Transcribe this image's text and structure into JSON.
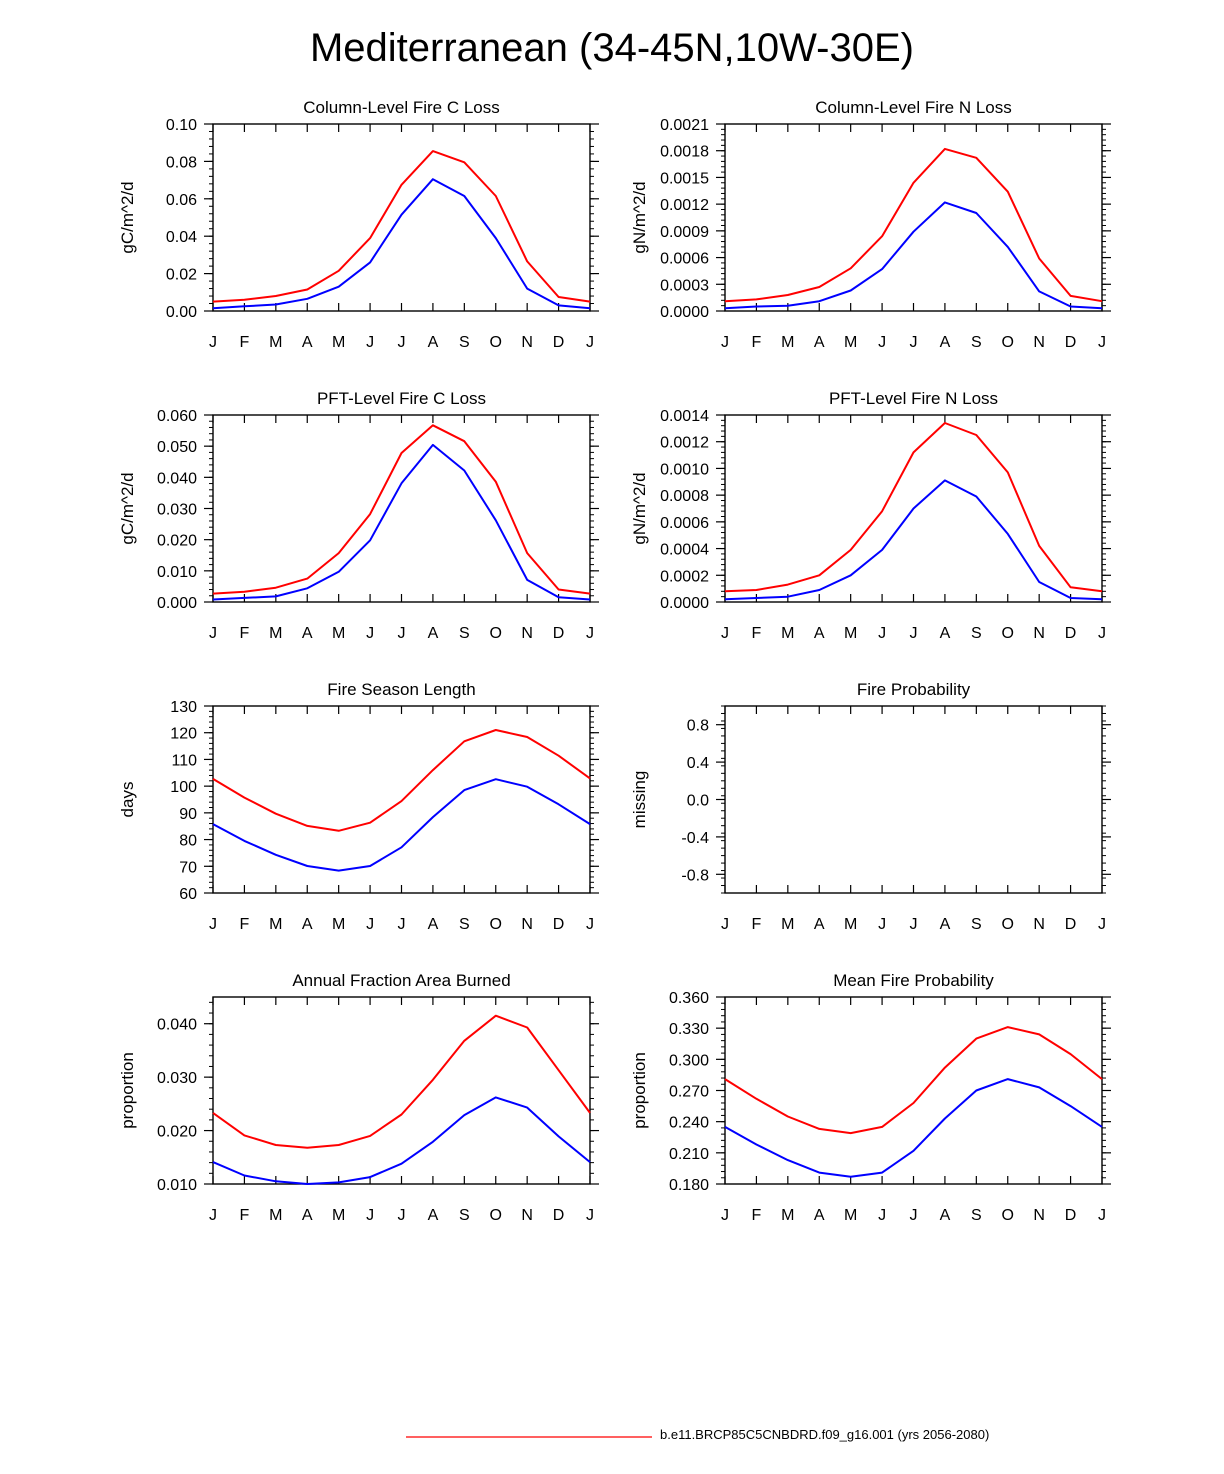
{
  "figure_title": "Mediterranean (34-45N,10W-30E)",
  "legend": [
    {
      "label": "b.e11.BRCP85C5CNBDRD.f09_g16.001 (yrs 2056-2080)",
      "color": "#ff0000"
    }
  ],
  "colors": {
    "red": "#ff0000",
    "blue": "#0000ff"
  },
  "chart_data": [
    {
      "type": "line",
      "title": "Column-Level Fire C Loss",
      "ylabel": "gC/m^2/d",
      "xlabel": "",
      "x": [
        "J",
        "F",
        "M",
        "A",
        "M",
        "J",
        "J",
        "A",
        "S",
        "O",
        "N",
        "D",
        "J"
      ],
      "ylim": [
        0,
        0.1
      ],
      "yticks": [
        0,
        0.02,
        0.04,
        0.06,
        0.08,
        0.1
      ],
      "ytick_labels": [
        "0.00",
        "0.02",
        "0.04",
        "0.06",
        "0.08",
        "0.10"
      ],
      "series": [
        {
          "name": "red",
          "color": "#ff0000",
          "values": [
            0.005,
            0.006,
            0.008,
            0.0115,
            0.0215,
            0.039,
            0.0675,
            0.0855,
            0.0795,
            0.0615,
            0.0265,
            0.0075,
            0.005
          ]
        },
        {
          "name": "blue",
          "color": "#0000ff",
          "values": [
            0.0015,
            0.0025,
            0.0035,
            0.0065,
            0.013,
            0.026,
            0.0515,
            0.0705,
            0.0615,
            0.039,
            0.012,
            0.003,
            0.0015
          ]
        }
      ]
    },
    {
      "type": "line",
      "title": "Column-Level Fire N Loss",
      "ylabel": "gN/m^2/d",
      "xlabel": "",
      "x": [
        "J",
        "F",
        "M",
        "A",
        "M",
        "J",
        "J",
        "A",
        "S",
        "O",
        "N",
        "D",
        "J"
      ],
      "ylim": [
        0,
        0.0021
      ],
      "yticks": [
        0,
        0.0003,
        0.0006,
        0.0009,
        0.0012,
        0.0015,
        0.0018,
        0.0021
      ],
      "ytick_labels": [
        "0.0000",
        "0.0003",
        "0.0006",
        "0.0009",
        "0.0012",
        "0.0015",
        "0.0018",
        "0.0021"
      ],
      "series": [
        {
          "name": "red",
          "color": "#ff0000",
          "values": [
            0.00011,
            0.00013,
            0.00018,
            0.00027,
            0.00048,
            0.00084,
            0.00144,
            0.00182,
            0.00172,
            0.00134,
            0.00059,
            0.00017,
            0.00011
          ]
        },
        {
          "name": "blue",
          "color": "#0000ff",
          "values": [
            3e-05,
            5e-05,
            6e-05,
            0.00011,
            0.00023,
            0.00047,
            0.00089,
            0.00122,
            0.0011,
            0.00072,
            0.00022,
            5e-05,
            3e-05
          ]
        }
      ]
    },
    {
      "type": "line",
      "title": "PFT-Level Fire C Loss",
      "ylabel": "gC/m^2/d",
      "xlabel": "",
      "x": [
        "J",
        "F",
        "M",
        "A",
        "M",
        "J",
        "J",
        "A",
        "S",
        "O",
        "N",
        "D",
        "J"
      ],
      "ylim": [
        0,
        0.06
      ],
      "yticks": [
        0,
        0.01,
        0.02,
        0.03,
        0.04,
        0.05,
        0.06
      ],
      "ytick_labels": [
        "0.000",
        "0.010",
        "0.020",
        "0.030",
        "0.040",
        "0.050",
        "0.060"
      ],
      "series": [
        {
          "name": "red",
          "color": "#ff0000",
          "values": [
            0.0027,
            0.0033,
            0.0046,
            0.0075,
            0.0157,
            0.0282,
            0.0478,
            0.0567,
            0.0516,
            0.0386,
            0.0157,
            0.004,
            0.0027
          ]
        },
        {
          "name": "blue",
          "color": "#0000ff",
          "values": [
            0.0008,
            0.0013,
            0.0018,
            0.0044,
            0.0097,
            0.0198,
            0.0381,
            0.0504,
            0.0422,
            0.0262,
            0.0071,
            0.0015,
            0.0008
          ]
        }
      ]
    },
    {
      "type": "line",
      "title": "PFT-Level Fire N Loss",
      "ylabel": "gN/m^2/d",
      "xlabel": "",
      "x": [
        "J",
        "F",
        "M",
        "A",
        "M",
        "J",
        "J",
        "A",
        "S",
        "O",
        "N",
        "D",
        "J"
      ],
      "ylim": [
        0,
        0.0014
      ],
      "yticks": [
        0,
        0.0002,
        0.0004,
        0.0006,
        0.0008,
        0.001,
        0.0012,
        0.0014
      ],
      "ytick_labels": [
        "0.0000",
        "0.0002",
        "0.0004",
        "0.0006",
        "0.0008",
        "0.0010",
        "0.0012",
        "0.0014"
      ],
      "series": [
        {
          "name": "red",
          "color": "#ff0000",
          "values": [
            8e-05,
            9e-05,
            0.00013,
            0.0002,
            0.00039,
            0.00068,
            0.00112,
            0.00134,
            0.00125,
            0.00097,
            0.00042,
            0.00011,
            8e-05
          ]
        },
        {
          "name": "blue",
          "color": "#0000ff",
          "values": [
            2e-05,
            3e-05,
            4e-05,
            9e-05,
            0.0002,
            0.00039,
            0.0007,
            0.00091,
            0.00079,
            0.00051,
            0.00015,
            3e-05,
            2e-05
          ]
        }
      ]
    },
    {
      "type": "line",
      "title": "Fire Season Length",
      "ylabel": "days",
      "xlabel": "",
      "x": [
        "J",
        "F",
        "M",
        "A",
        "M",
        "J",
        "J",
        "A",
        "S",
        "O",
        "N",
        "D",
        "J"
      ],
      "ylim": [
        60,
        130
      ],
      "yticks": [
        60,
        70,
        80,
        90,
        100,
        110,
        120,
        130
      ],
      "ytick_labels": [
        "60",
        "70",
        "80",
        "90",
        "100",
        "110",
        "120",
        "130"
      ],
      "series": [
        {
          "name": "red",
          "color": "#ff0000",
          "values": [
            102.7,
            95.7,
            89.7,
            85.1,
            83.3,
            86.3,
            94.4,
            106,
            116.8,
            121,
            118.4,
            111.4,
            102.9
          ]
        },
        {
          "name": "blue",
          "color": "#0000ff",
          "values": [
            85.8,
            79.5,
            74.3,
            70.1,
            68.4,
            70.1,
            77.1,
            88.4,
            98.5,
            102.6,
            99.8,
            93.2,
            85.8
          ]
        }
      ]
    },
    {
      "type": "line",
      "title": "Fire Probability",
      "ylabel": "missing",
      "xlabel": "",
      "x": [
        "J",
        "F",
        "M",
        "A",
        "M",
        "J",
        "J",
        "A",
        "S",
        "O",
        "N",
        "D",
        "J"
      ],
      "ylim": [
        -1,
        1
      ],
      "yticks": [
        -0.8,
        -0.4,
        0,
        0.4,
        0.8
      ],
      "ytick_labels": [
        "-0.8",
        "-0.4",
        "0.0",
        "0.4",
        "0.8"
      ],
      "series": []
    },
    {
      "type": "line",
      "title": "Annual Fraction Area Burned",
      "ylabel": "proportion",
      "xlabel": "",
      "x": [
        "J",
        "F",
        "M",
        "A",
        "M",
        "J",
        "J",
        "A",
        "S",
        "O",
        "N",
        "D",
        "J"
      ],
      "ylim": [
        0.01,
        0.045
      ],
      "yticks": [
        0.01,
        0.02,
        0.03,
        0.04
      ],
      "ytick_labels": [
        "0.010",
        "0.020",
        "0.030",
        "0.040"
      ],
      "series": [
        {
          "name": "red",
          "color": "#ff0000",
          "values": [
            0.0233,
            0.0191,
            0.0173,
            0.0168,
            0.0173,
            0.019,
            0.023,
            0.0295,
            0.0368,
            0.0415,
            0.0393,
            0.0313,
            0.0233
          ]
        },
        {
          "name": "blue",
          "color": "#0000ff",
          "values": [
            0.0141,
            0.0116,
            0.0105,
            0.01,
            0.0103,
            0.0113,
            0.0138,
            0.0179,
            0.0229,
            0.0262,
            0.0243,
            0.0189,
            0.0141
          ]
        }
      ]
    },
    {
      "type": "line",
      "title": "Mean Fire Probability",
      "ylabel": "proportion",
      "xlabel": "",
      "x": [
        "J",
        "F",
        "M",
        "A",
        "M",
        "J",
        "J",
        "A",
        "S",
        "O",
        "N",
        "D",
        "J"
      ],
      "ylim": [
        0.18,
        0.36
      ],
      "yticks": [
        0.18,
        0.21,
        0.24,
        0.27,
        0.3,
        0.33,
        0.36
      ],
      "ytick_labels": [
        "0.180",
        "0.210",
        "0.240",
        "0.270",
        "0.300",
        "0.330",
        "0.360"
      ],
      "series": [
        {
          "name": "red",
          "color": "#ff0000",
          "values": [
            0.281,
            0.262,
            0.245,
            0.233,
            0.229,
            0.235,
            0.258,
            0.292,
            0.32,
            0.331,
            0.324,
            0.305,
            0.281
          ]
        },
        {
          "name": "blue",
          "color": "#0000ff",
          "values": [
            0.235,
            0.218,
            0.203,
            0.191,
            0.187,
            0.191,
            0.212,
            0.243,
            0.27,
            0.281,
            0.273,
            0.255,
            0.235
          ]
        }
      ]
    }
  ]
}
